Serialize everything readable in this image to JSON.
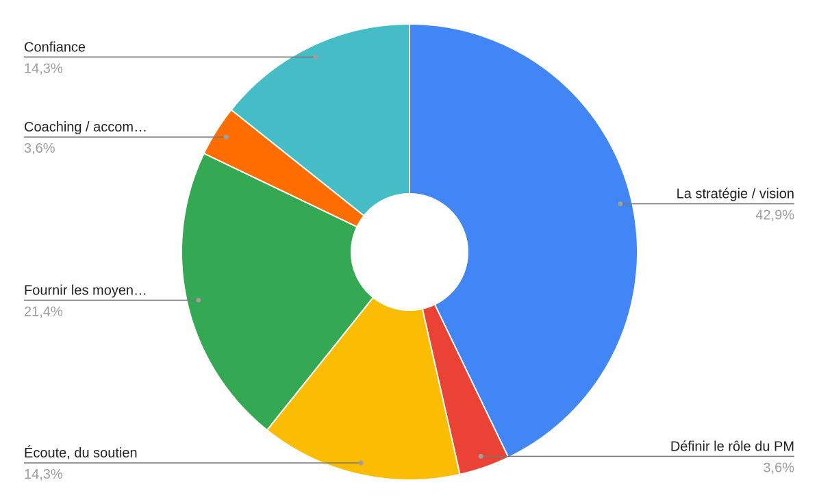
{
  "chart_data": {
    "type": "donut",
    "categories": [
      "La stratégie / vision",
      "Définir le rôle du PM",
      "Écoute, du soutien",
      "Fournir les moyen…",
      "Coaching / accom…",
      "Confiance"
    ],
    "values": [
      42.9,
      3.6,
      14.3,
      21.4,
      3.6,
      14.3
    ],
    "value_labels": [
      "42,9%",
      "3,6%",
      "14,3%",
      "21,4%",
      "3,6%",
      "14,3%"
    ],
    "colors": [
      "#4285f4",
      "#ea4335",
      "#fbbc04",
      "#34a853",
      "#ff6d01",
      "#46bdc6"
    ]
  }
}
